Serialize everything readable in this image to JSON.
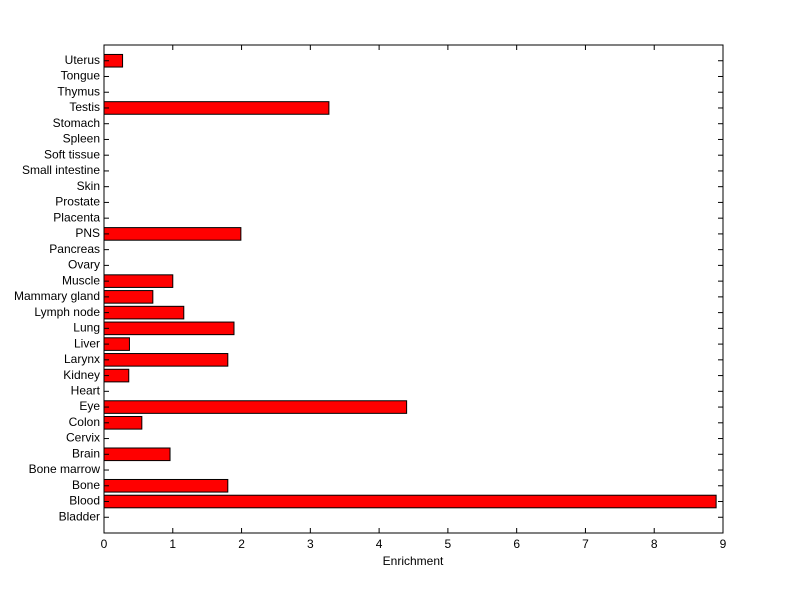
{
  "chart_data": {
    "type": "hbar",
    "categories": [
      "Bladder",
      "Blood",
      "Bone",
      "Bone marrow",
      "Brain",
      "Cervix",
      "Colon",
      "Eye",
      "Heart",
      "Kidney",
      "Larynx",
      "Liver",
      "Lung",
      "Lymph node",
      "Mammary gland",
      "Muscle",
      "Ovary",
      "Pancreas",
      "PNS",
      "Placenta",
      "Prostate",
      "Skin",
      "Small intestine",
      "Soft tissue",
      "Spleen",
      "Stomach",
      "Testis",
      "Thymus",
      "Tongue",
      "Uterus"
    ],
    "values": [
      0,
      8.9,
      1.8,
      0,
      0.96,
      0,
      0.55,
      4.4,
      0,
      0.36,
      1.8,
      0.37,
      1.89,
      1.16,
      0.71,
      1.0,
      0,
      0,
      1.99,
      0,
      0,
      0,
      0,
      0,
      0,
      0,
      3.27,
      0,
      0,
      0.27
    ],
    "color": "#ff0000",
    "xlabel": "Enrichment",
    "xlim": [
      0,
      9
    ],
    "xticks": [
      0,
      1,
      2,
      3,
      4,
      5,
      6,
      7,
      8,
      9
    ]
  }
}
